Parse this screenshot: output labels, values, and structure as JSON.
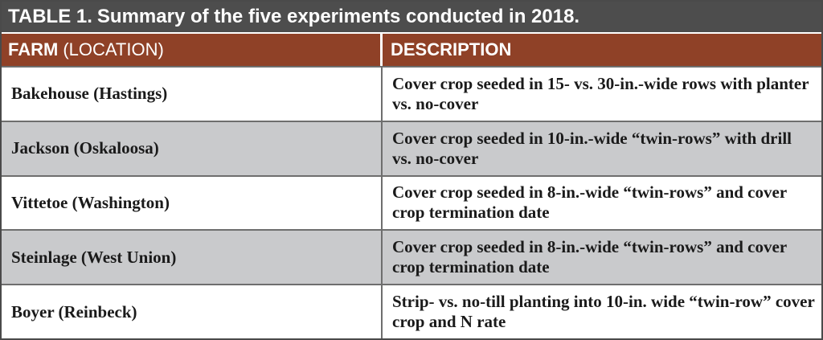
{
  "table": {
    "title_label": "TABLE 1.",
    "title_text": "Summary of the five experiments conducted in 2018.",
    "headers": {
      "farm_bold": "FARM",
      "farm_light": "(LOCATION)",
      "description": "DESCRIPTION"
    },
    "rows": [
      {
        "farm": "Bakehouse (Hastings)",
        "description": "Cover crop seeded in 15- vs. 30-in.-wide rows with planter vs. no-cover"
      },
      {
        "farm": "Jackson (Oskaloosa)",
        "description": "Cover crop seeded in 10-in.-wide “twin-rows” with drill vs. no-cover"
      },
      {
        "farm": "Vittetoe (Washington)",
        "description": "Cover crop seeded in 8-in.-wide “twin-rows” and cover crop termination date"
      },
      {
        "farm": "Steinlage (West Union)",
        "description": "Cover crop seeded in 8-in.-wide “twin-rows” and cover crop termination date"
      },
      {
        "farm": "Boyer (Reinbeck)",
        "description": "Strip- vs. no-till planting into 10-in. wide “twin-row” cover crop and N rate"
      }
    ]
  },
  "colors": {
    "title_bar": "#4d4d4d",
    "header_row": "#8f4127",
    "shaded_row": "#c9cacc",
    "plain_row": "#ffffff"
  }
}
